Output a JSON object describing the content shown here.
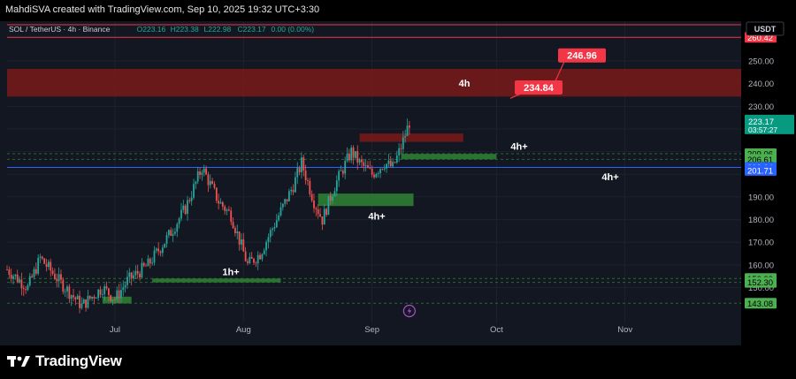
{
  "header": {
    "attribution": "MahdiSVA created with TradingView.com, Sep 10, 2025 19:32 UTC+3:30"
  },
  "legend": {
    "symbol": "SOL / TetherUS · 4h · Binance",
    "o_label": "O",
    "o_value": "223.16",
    "h_label": "H",
    "h_value": "223.38",
    "l_label": "L",
    "l_value": "222.98",
    "c_label": "C",
    "c_value": "223.17",
    "change": "0.00 (0.00%)"
  },
  "currency_button": "USDT",
  "footer": {
    "brand": "TradingView"
  },
  "colors": {
    "background": "#131722",
    "grid": "#1e222d",
    "up": "#26a69a",
    "down": "#ef5350",
    "resistance_line": "#f23645",
    "resistance_zone": "#7a1a1a",
    "demand_zone": "#2e7d32",
    "blue_line": "#2962ff",
    "price_tag": "#089981",
    "label_red": "#f23645"
  },
  "chart_data": {
    "type": "candlestick",
    "y_axis": {
      "range": [
        135,
        266
      ],
      "ticks": [
        150,
        160,
        170,
        180,
        190,
        200,
        210,
        220,
        230,
        240,
        250
      ],
      "tick_labels": [
        "150.00",
        "160.00",
        "170.00",
        "180.00",
        "190.00",
        "",
        "",
        "",
        "230.00",
        "240.00",
        "250.00"
      ]
    },
    "x_axis": {
      "range": [
        "2025-06-05",
        "2025-11-29"
      ],
      "ticks": [
        {
          "date": "2025-07-01",
          "label": "Jul"
        },
        {
          "date": "2025-08-01",
          "label": "Aug"
        },
        {
          "date": "2025-09-01",
          "label": "Sep"
        },
        {
          "date": "2025-10-01",
          "label": "Oct"
        },
        {
          "date": "2025-11-01",
          "label": "Nov"
        }
      ]
    },
    "series": [
      {
        "key_prices": [
          {
            "date": "2025-06-05",
            "close": 158
          },
          {
            "date": "2025-06-10",
            "close": 150
          },
          {
            "date": "2025-06-13",
            "close": 163
          },
          {
            "date": "2025-06-18",
            "close": 152
          },
          {
            "date": "2025-06-23",
            "close": 142
          },
          {
            "date": "2025-06-28",
            "close": 150
          },
          {
            "date": "2025-07-01",
            "close": 145
          },
          {
            "date": "2025-07-04",
            "close": 153
          },
          {
            "date": "2025-07-09",
            "close": 160
          },
          {
            "date": "2025-07-14",
            "close": 173
          },
          {
            "date": "2025-07-18",
            "close": 185
          },
          {
            "date": "2025-07-22",
            "close": 203
          },
          {
            "date": "2025-07-26",
            "close": 188
          },
          {
            "date": "2025-07-29",
            "close": 182
          },
          {
            "date": "2025-08-02",
            "close": 160
          },
          {
            "date": "2025-08-05",
            "close": 165
          },
          {
            "date": "2025-08-09",
            "close": 180
          },
          {
            "date": "2025-08-13",
            "close": 195
          },
          {
            "date": "2025-08-15",
            "close": 205
          },
          {
            "date": "2025-08-18",
            "close": 188
          },
          {
            "date": "2025-08-20",
            "close": 180
          },
          {
            "date": "2025-08-23",
            "close": 195
          },
          {
            "date": "2025-08-27",
            "close": 210
          },
          {
            "date": "2025-08-29",
            "close": 205
          },
          {
            "date": "2025-09-01",
            "close": 200
          },
          {
            "date": "2025-09-04",
            "close": 205
          },
          {
            "date": "2025-09-06",
            "close": 203
          },
          {
            "date": "2025-09-08",
            "close": 212
          },
          {
            "date": "2025-09-10",
            "close": 223
          }
        ]
      }
    ],
    "zones": [
      {
        "type": "resistance",
        "from": "2025-06-05",
        "to": "2025-11-29",
        "low": 234.3,
        "high": 246.5,
        "label": "4h"
      },
      {
        "type": "resistance",
        "from": "2025-08-29",
        "to": "2025-09-23",
        "low": 214.3,
        "high": 218
      },
      {
        "type": "demand",
        "from": "2025-09-08",
        "to": "2025-10-01",
        "low": 206.6,
        "high": 209,
        "label": "4h+"
      },
      {
        "type": "demand",
        "from": "2025-08-19",
        "to": "2025-09-11",
        "low": 186,
        "high": 191.5,
        "label": "4h+"
      },
      {
        "type": "demand",
        "from": "2025-07-10",
        "to": "2025-08-10",
        "low": 152.3,
        "high": 154,
        "label": "1h+"
      },
      {
        "type": "demand",
        "from": "2025-06-28",
        "to": "2025-07-05",
        "low": 143,
        "high": 146
      }
    ],
    "levels": [
      {
        "price": 260.42,
        "style": "solid",
        "color": "#f23645"
      },
      {
        "price": 266.0,
        "style": "solid",
        "color": "#f23645"
      },
      {
        "price": 209.06,
        "style": "dashed",
        "color": "#2e7d32"
      },
      {
        "price": 206.61,
        "style": "dashed",
        "color": "#2e7d32"
      },
      {
        "price": 203.04,
        "style": "solid",
        "color": "#2962ff"
      },
      {
        "price": 153.99,
        "style": "dashed",
        "color": "#2e7d32"
      },
      {
        "price": 152.3,
        "style": "dashed",
        "color": "#2e7d32"
      },
      {
        "price": 143.08,
        "style": "dashed",
        "color": "#2e7d32"
      }
    ],
    "blue_line_label": "4h+",
    "callouts": [
      {
        "text": "246.96",
        "price": 246.96
      },
      {
        "text": "234.84",
        "price": 234.84
      }
    ],
    "price_tags": [
      {
        "text": "260.42",
        "price": 260.42,
        "color": "#f23645",
        "text_color": "#ffffff"
      },
      {
        "text": "223.17",
        "sub": "03:57:27",
        "price": 223.17,
        "color": "#089981",
        "text_color": "#ffffff"
      },
      {
        "text": "209.06",
        "price": 209.06,
        "color": "#4caf50",
        "text_color": "#000000"
      },
      {
        "text": "206.61",
        "price": 206.61,
        "color": "#4caf50",
        "text_color": "#000000"
      },
      {
        "text": "203.04",
        "price": 203.04,
        "color": "#2962ff",
        "text_color": "#ffffff"
      },
      {
        "text": "201.71",
        "price": 201.71,
        "color": "#2962ff",
        "text_color": "#ffffff"
      },
      {
        "text": "153.99",
        "price": 153.99,
        "color": "#4caf50",
        "text_color": "#000000"
      },
      {
        "text": "152.30",
        "price": 152.3,
        "color": "#4caf50",
        "text_color": "#000000"
      },
      {
        "text": "143.08",
        "price": 143.08,
        "color": "#4caf50",
        "text_color": "#000000"
      }
    ]
  }
}
